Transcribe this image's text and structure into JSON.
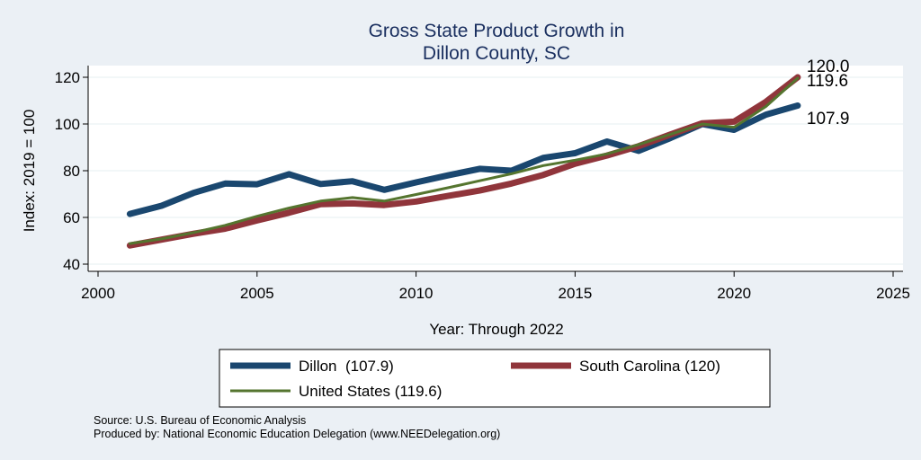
{
  "chart_data": {
    "type": "line",
    "title": [
      "Gross State Product Growth in",
      "Dillon County, SC"
    ],
    "xlabel": "Year: Through 2022",
    "ylabel": "Index: 2019 = 100",
    "xlim": [
      2000,
      2025
    ],
    "ylim": [
      40,
      125
    ],
    "x_ticks": [
      2000,
      2005,
      2010,
      2015,
      2020,
      2025
    ],
    "y_ticks": [
      40,
      60,
      80,
      100,
      120
    ],
    "grid": true,
    "legend_position": "bottom",
    "x": [
      2001,
      2002,
      2003,
      2004,
      2005,
      2006,
      2007,
      2008,
      2009,
      2010,
      2011,
      2012,
      2013,
      2014,
      2015,
      2016,
      2017,
      2018,
      2019,
      2020,
      2021,
      2022
    ],
    "series": [
      {
        "name": "Dillon  (107.9)",
        "color": "#1a476f",
        "end_label": "107.9",
        "values": [
          61.5,
          65,
          70.5,
          74.5,
          74.2,
          78.5,
          74.3,
          75.5,
          71.8,
          75,
          78,
          80.8,
          80,
          85.5,
          87.5,
          92.5,
          88.5,
          94,
          100,
          97.5,
          104,
          107.9
        ]
      },
      {
        "name": "South Carolina (120)",
        "color": "#90353b",
        "end_label": "120.0",
        "values": [
          48,
          50.5,
          53,
          55.2,
          58.7,
          62,
          65.7,
          66,
          65.3,
          66.8,
          69.2,
          71.5,
          74.5,
          78.2,
          83,
          86.5,
          90.5,
          95.5,
          100.3,
          101,
          109.5,
          120
        ]
      },
      {
        "name": "United States (119.6)",
        "color": "#55752f",
        "end_label": "119.6",
        "values": [
          48.8,
          50.8,
          53.5,
          56.6,
          60.5,
          64,
          67,
          68.5,
          67,
          69.8,
          72.7,
          75.7,
          78.7,
          82.2,
          84.5,
          87.2,
          91.2,
          95.6,
          100,
          98.6,
          107.5,
          119.6
        ]
      }
    ]
  },
  "footer": {
    "source": "Source: U.S. Bureau of Economic Analysis",
    "produced_by": "Produced by: National Economic Education Delegation (www.NEEDelegation.org)"
  }
}
